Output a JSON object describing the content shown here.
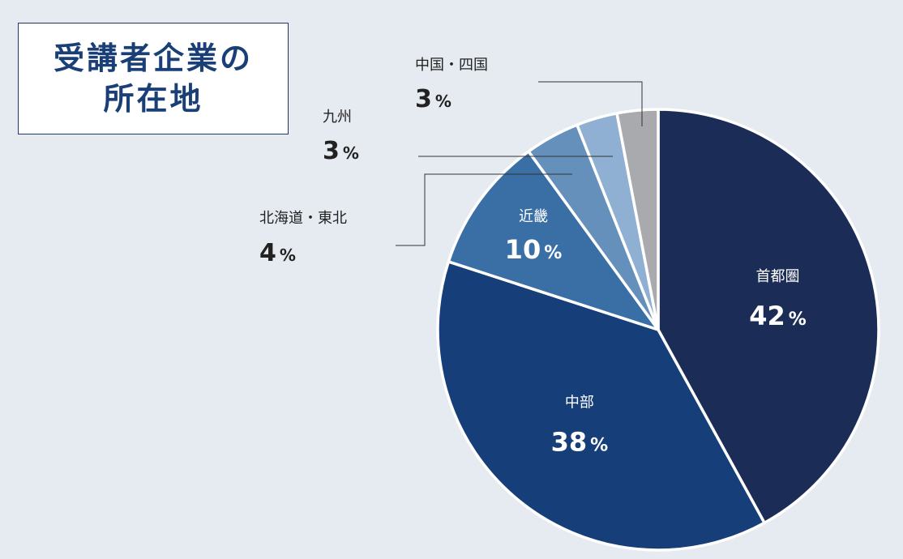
{
  "title": {
    "line1": "受講者企業の",
    "line2": "所在地"
  },
  "chart_data": {
    "type": "pie",
    "title": "受講者企業の所在地",
    "unit": "%",
    "slices": [
      {
        "label": "首都圏",
        "value": 42,
        "color": "#1b2c56"
      },
      {
        "label": "中部",
        "value": 38,
        "color": "#163e79"
      },
      {
        "label": "近畿",
        "value": 10,
        "color": "#3a6fa6"
      },
      {
        "label": "北海道・東北",
        "value": 4,
        "color": "#6590bc"
      },
      {
        "label": "九州",
        "value": 3,
        "color": "#8fb0d2"
      },
      {
        "label": "中国・四国",
        "value": 3,
        "color": "#a9aaad"
      }
    ]
  }
}
